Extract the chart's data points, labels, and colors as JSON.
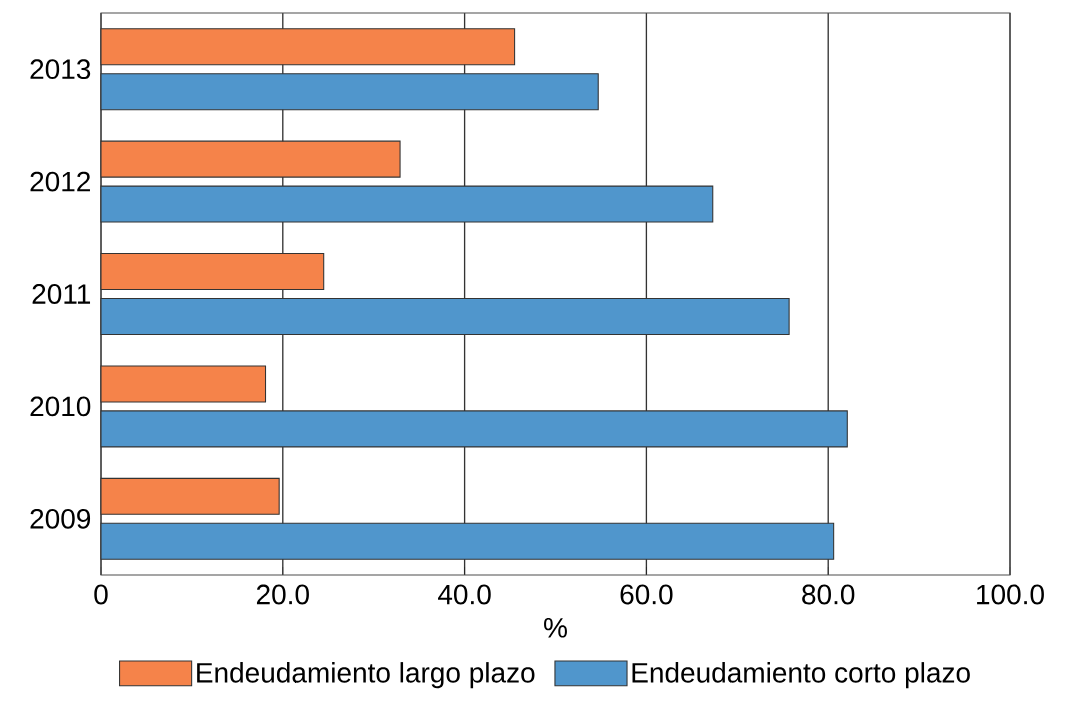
{
  "chart_data": {
    "type": "bar",
    "orientation": "horizontal",
    "xlabel": "%",
    "categories": [
      "2013",
      "2012",
      "2011",
      "2010",
      "2009"
    ],
    "series": [
      {
        "name": "Endeudamiento largo plazo",
        "color": "#f5834a",
        "values": [
          45.5,
          32.9,
          24.5,
          18.1,
          19.6
        ]
      },
      {
        "name": "Endeudamiento corto plazo",
        "color": "#5096cc",
        "values": [
          54.7,
          67.3,
          75.7,
          82.1,
          80.6
        ]
      }
    ],
    "xlim": [
      0,
      100
    ],
    "xticks": [
      0,
      {
        "value": 20,
        "label": "20.0"
      },
      {
        "value": 40,
        "label": "40.0"
      },
      {
        "value": 60,
        "label": "60.0"
      },
      {
        "value": 80,
        "label": "80.0"
      },
      {
        "value": 100,
        "label": "100.0"
      }
    ],
    "grid": "x",
    "legend": "bottom"
  }
}
